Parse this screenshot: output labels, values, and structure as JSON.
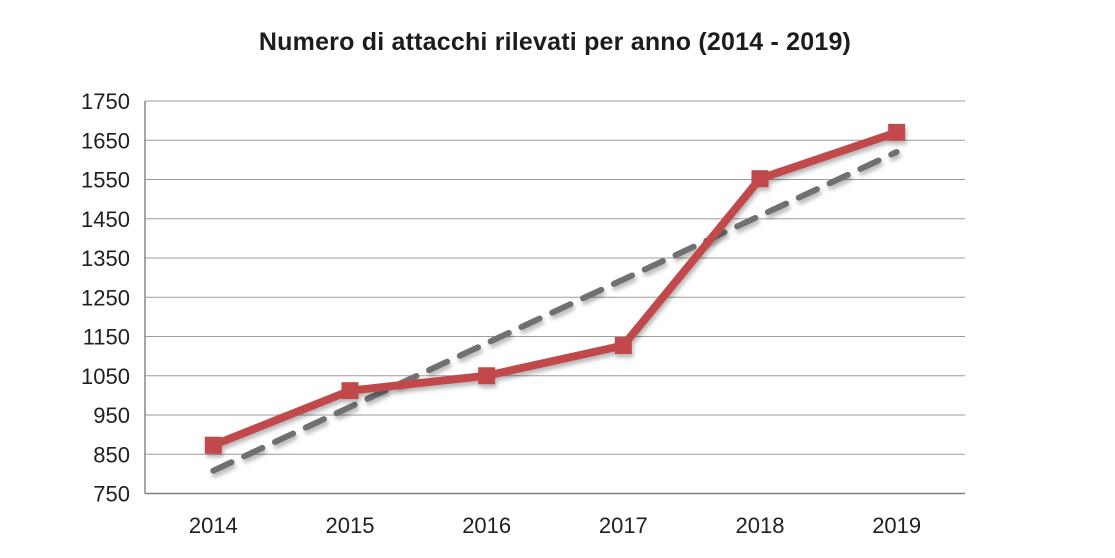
{
  "chart_data": {
    "type": "line",
    "title": "Numero di attacchi rilevati per anno (2014 - 2019)",
    "categories": [
      "2014",
      "2015",
      "2016",
      "2017",
      "2018",
      "2019"
    ],
    "series": [
      {
        "values": [
          873,
          1012,
          1050,
          1127,
          1552,
          1670
        ],
        "color": "#c2494b",
        "marker": "square",
        "line_width": 8
      }
    ],
    "trendline": {
      "type": "linear",
      "start_value": 808,
      "end_value": 1620,
      "color": "#6f6f6f",
      "style": "dashed",
      "line_width": 6
    },
    "ylim": [
      750,
      1750
    ],
    "ytick_step": 100,
    "ytick_labels": [
      "1750",
      "1650",
      "1550",
      "1450",
      "1350",
      "1250",
      "1150",
      "1050",
      "950",
      "850",
      "750"
    ],
    "xlabel": "",
    "ylabel": "",
    "grid": "horizontal",
    "legend": "none",
    "colors": {
      "grid": "#9c9c9c",
      "axis": "#808080",
      "tick_text": "#1f1f1f",
      "title_text": "#1c1c1c",
      "background": "#ffffff"
    }
  }
}
